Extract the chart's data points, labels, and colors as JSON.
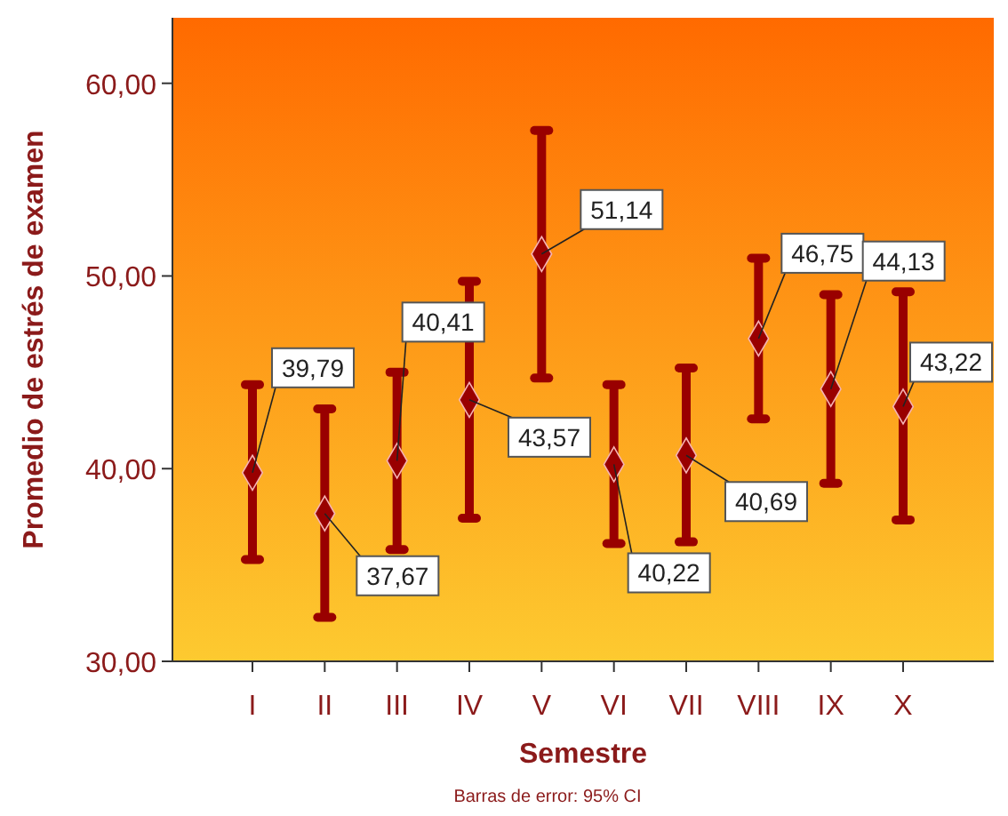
{
  "chart_data": {
    "type": "scatter",
    "xlabel": "Semestre",
    "ylabel": "Promedio de estrés de examen",
    "annotations": [
      "Barras de error: 95% CI"
    ],
    "categories": [
      "I",
      "II",
      "III",
      "IV",
      "V",
      "VI",
      "VII",
      "VIII",
      "IX",
      "X"
    ],
    "values": [
      39.79,
      37.67,
      40.41,
      43.57,
      51.14,
      40.22,
      40.69,
      46.75,
      44.13,
      43.22
    ],
    "errors": [
      [
        35.28,
        44.36
      ],
      [
        32.28,
        43.1
      ],
      [
        35.8,
        45.0
      ],
      [
        37.43,
        49.72
      ],
      [
        44.7,
        57.55
      ],
      [
        36.11,
        44.36
      ],
      [
        36.2,
        45.22
      ],
      [
        42.58,
        50.92
      ],
      [
        39.24,
        49.03
      ],
      [
        37.34,
        49.18
      ]
    ],
    "value_labels": [
      "39,79",
      "37,67",
      "40,41",
      "43,57",
      "51,14",
      "40,22",
      "40,69",
      "46,75",
      "44,13",
      "43,22"
    ],
    "color": "#990000",
    "marker": "diamond",
    "grid": false,
    "ylim": [
      30,
      63.4
    ],
    "yticks": [
      {
        "value": 30,
        "label": "30,00"
      },
      {
        "value": 40,
        "label": "40,00"
      },
      {
        "value": 50,
        "label": "50,00"
      },
      {
        "value": 60,
        "label": "60,00"
      }
    ]
  }
}
